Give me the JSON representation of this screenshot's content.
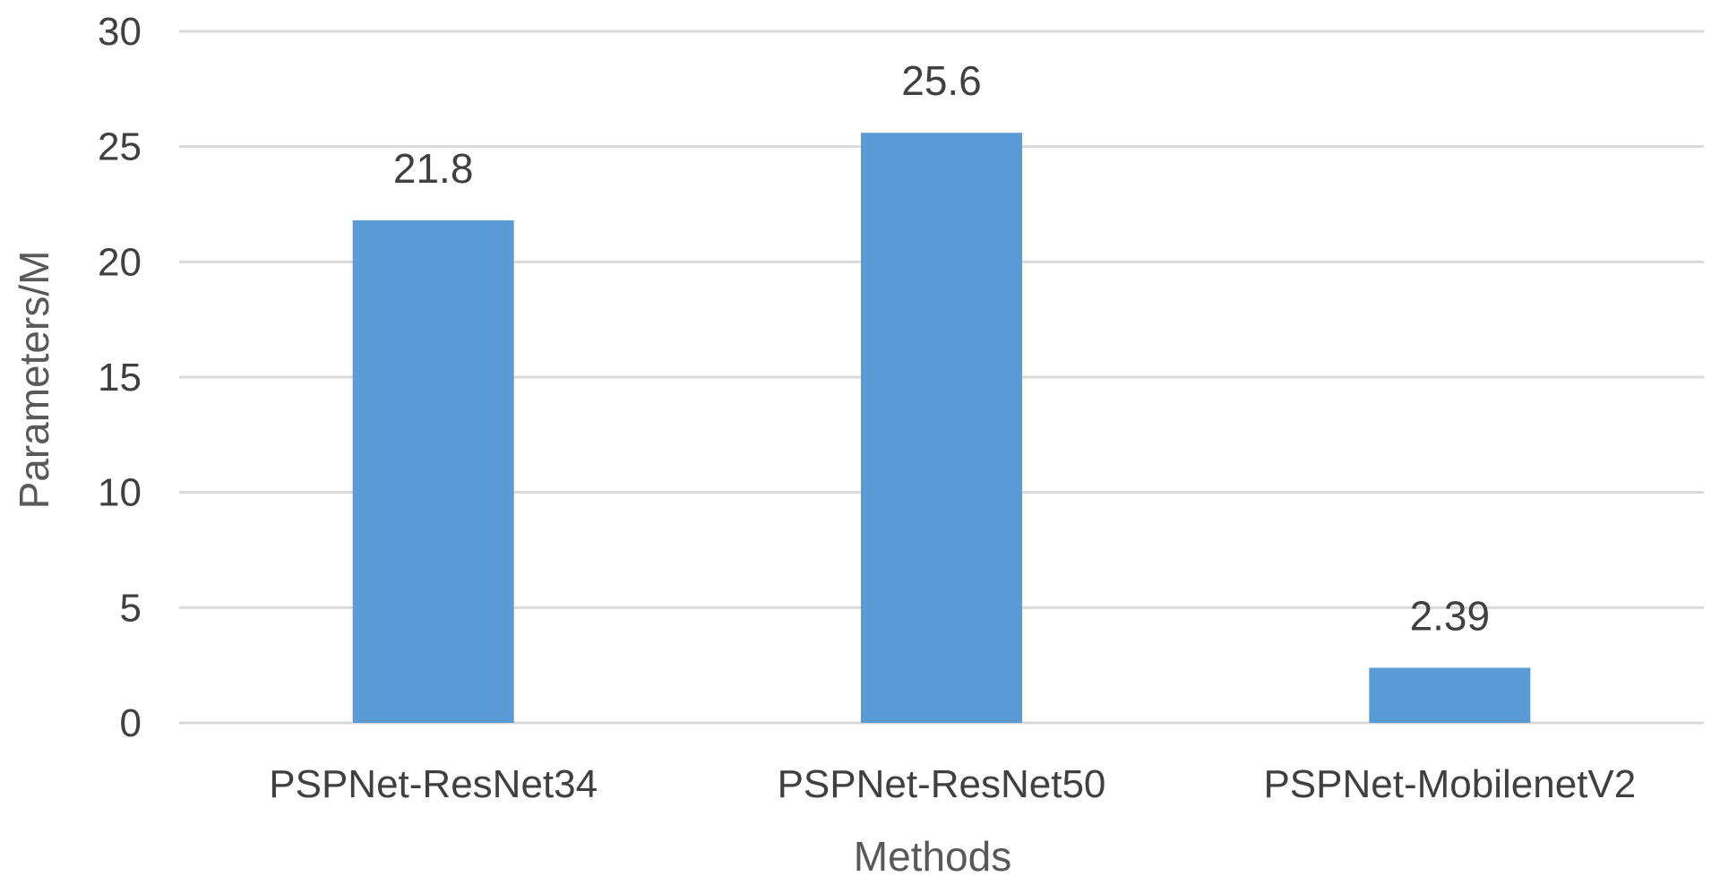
{
  "chart_data": {
    "type": "bar",
    "title": "",
    "xlabel": "Methods",
    "ylabel": "Parameters/M",
    "categories": [
      "PSPNet-ResNet34",
      "PSPNet-ResNet50",
      "PSPNet-MobilenetV2"
    ],
    "values": [
      21.8,
      25.6,
      2.39
    ],
    "data_labels": [
      "21.8",
      "25.6",
      "2.39"
    ],
    "ylim": [
      0,
      30
    ],
    "yticks": [
      "0",
      "5",
      "10",
      "15",
      "20",
      "25",
      "30"
    ],
    "grid": true,
    "legend": "none",
    "colors": {
      "bar": "#5b9bd5",
      "grid": "#d9d9d9",
      "text": "#404040",
      "axis_title": "#595959"
    }
  }
}
